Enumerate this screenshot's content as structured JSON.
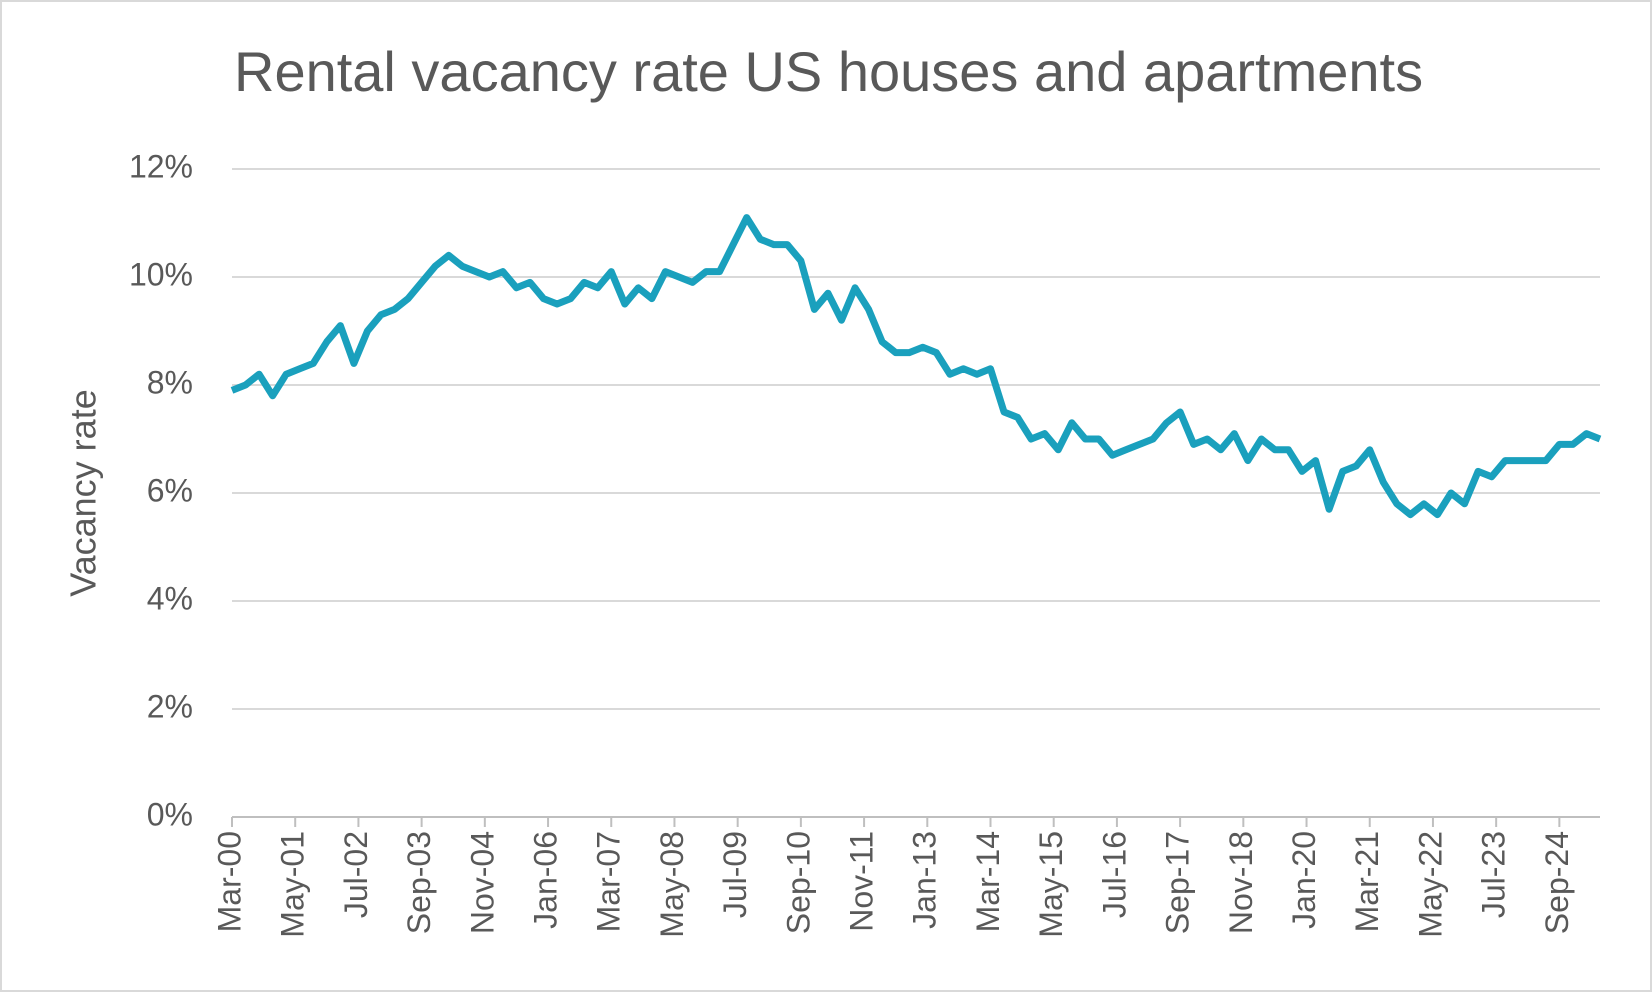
{
  "chart_data": {
    "type": "line",
    "title": "Rental vacancy rate US houses and apartments",
    "y_label": "Vacancy rate",
    "x": [
      "2000-03",
      "2000-06",
      "2000-09",
      "2000-12",
      "2001-03",
      "2001-06",
      "2001-09",
      "2001-12",
      "2002-03",
      "2002-06",
      "2002-09",
      "2002-12",
      "2003-03",
      "2003-06",
      "2003-09",
      "2003-12",
      "2004-03",
      "2004-06",
      "2004-09",
      "2004-12",
      "2005-03",
      "2005-06",
      "2005-09",
      "2005-12",
      "2006-03",
      "2006-06",
      "2006-09",
      "2006-12",
      "2007-03",
      "2007-06",
      "2007-09",
      "2007-12",
      "2008-03",
      "2008-06",
      "2008-09",
      "2008-12",
      "2009-03",
      "2009-06",
      "2009-09",
      "2009-12",
      "2010-03",
      "2010-06",
      "2010-09",
      "2010-12",
      "2011-03",
      "2011-06",
      "2011-09",
      "2011-12",
      "2012-03",
      "2012-06",
      "2012-09",
      "2012-12",
      "2013-03",
      "2013-06",
      "2013-09",
      "2013-12",
      "2014-03",
      "2014-06",
      "2014-09",
      "2014-12",
      "2015-03",
      "2015-06",
      "2015-09",
      "2015-12",
      "2016-03",
      "2016-06",
      "2016-09",
      "2016-12",
      "2017-03",
      "2017-06",
      "2017-09",
      "2017-12",
      "2018-03",
      "2018-06",
      "2018-09",
      "2018-12",
      "2019-03",
      "2019-06",
      "2019-09",
      "2019-12",
      "2020-03",
      "2020-06",
      "2020-09",
      "2020-12",
      "2021-03",
      "2021-06",
      "2021-09",
      "2021-12",
      "2022-03",
      "2022-06",
      "2022-09",
      "2022-12",
      "2023-03",
      "2023-06",
      "2023-09",
      "2023-12",
      "2024-03",
      "2024-06",
      "2024-09",
      "2024-12",
      "2025-03",
      "2025-06"
    ],
    "series": [
      {
        "name": "Vacancy rate",
        "color": "#1aa0bd",
        "values": [
          7.9,
          8.0,
          8.2,
          7.8,
          8.2,
          8.3,
          8.4,
          8.8,
          9.1,
          8.4,
          9.0,
          9.3,
          9.4,
          9.6,
          9.9,
          10.2,
          10.4,
          10.2,
          10.1,
          10.0,
          10.1,
          9.8,
          9.9,
          9.6,
          9.5,
          9.6,
          9.9,
          9.8,
          10.1,
          9.5,
          9.8,
          9.6,
          10.1,
          10.0,
          9.9,
          10.1,
          10.1,
          10.6,
          11.1,
          10.7,
          10.6,
          10.6,
          10.3,
          9.4,
          9.7,
          9.2,
          9.8,
          9.4,
          8.8,
          8.6,
          8.6,
          8.7,
          8.6,
          8.2,
          8.3,
          8.2,
          8.3,
          7.5,
          7.4,
          7.0,
          7.1,
          6.8,
          7.3,
          7.0,
          7.0,
          6.7,
          6.8,
          6.9,
          7.0,
          7.3,
          7.5,
          6.9,
          7.0,
          6.8,
          7.1,
          6.6,
          7.0,
          6.8,
          6.8,
          6.4,
          6.6,
          5.7,
          6.4,
          6.5,
          6.8,
          6.2,
          5.8,
          5.6,
          5.8,
          5.6,
          6.0,
          5.8,
          6.4,
          6.3,
          6.6,
          6.6,
          6.6,
          6.6,
          6.9,
          6.9,
          7.1,
          7.0
        ]
      }
    ],
    "xlim": [
      "2000-03",
      "2025-06"
    ],
    "xticks": [
      {
        "value": "2000-03",
        "label": "Mar-00"
      },
      {
        "value": "2001-05",
        "label": "May-01"
      },
      {
        "value": "2002-07",
        "label": "Jul-02"
      },
      {
        "value": "2003-09",
        "label": "Sep-03"
      },
      {
        "value": "2004-11",
        "label": "Nov-04"
      },
      {
        "value": "2006-01",
        "label": "Jan-06"
      },
      {
        "value": "2007-03",
        "label": "Mar-07"
      },
      {
        "value": "2008-05",
        "label": "May-08"
      },
      {
        "value": "2009-07",
        "label": "Jul-09"
      },
      {
        "value": "2010-09",
        "label": "Sep-10"
      },
      {
        "value": "2011-11",
        "label": "Nov-11"
      },
      {
        "value": "2013-01",
        "label": "Jan-13"
      },
      {
        "value": "2014-03",
        "label": "Mar-14"
      },
      {
        "value": "2015-05",
        "label": "May-15"
      },
      {
        "value": "2016-07",
        "label": "Jul-16"
      },
      {
        "value": "2017-09",
        "label": "Sep-17"
      },
      {
        "value": "2018-11",
        "label": "Nov-18"
      },
      {
        "value": "2020-01",
        "label": "Jan-20"
      },
      {
        "value": "2021-03",
        "label": "Mar-21"
      },
      {
        "value": "2022-05",
        "label": "May-22"
      },
      {
        "value": "2023-07",
        "label": "Jul-23"
      },
      {
        "value": "2024-09",
        "label": "Sep-24"
      }
    ],
    "ylim": [
      0,
      12
    ],
    "yticks": [
      {
        "value": 0,
        "label": "0%"
      },
      {
        "value": 2,
        "label": "2%"
      },
      {
        "value": 4,
        "label": "4%"
      },
      {
        "value": 6,
        "label": "6%"
      },
      {
        "value": 8,
        "label": "8%"
      },
      {
        "value": 10,
        "label": "10%"
      },
      {
        "value": 12,
        "label": "12%"
      }
    ],
    "grid": true
  }
}
